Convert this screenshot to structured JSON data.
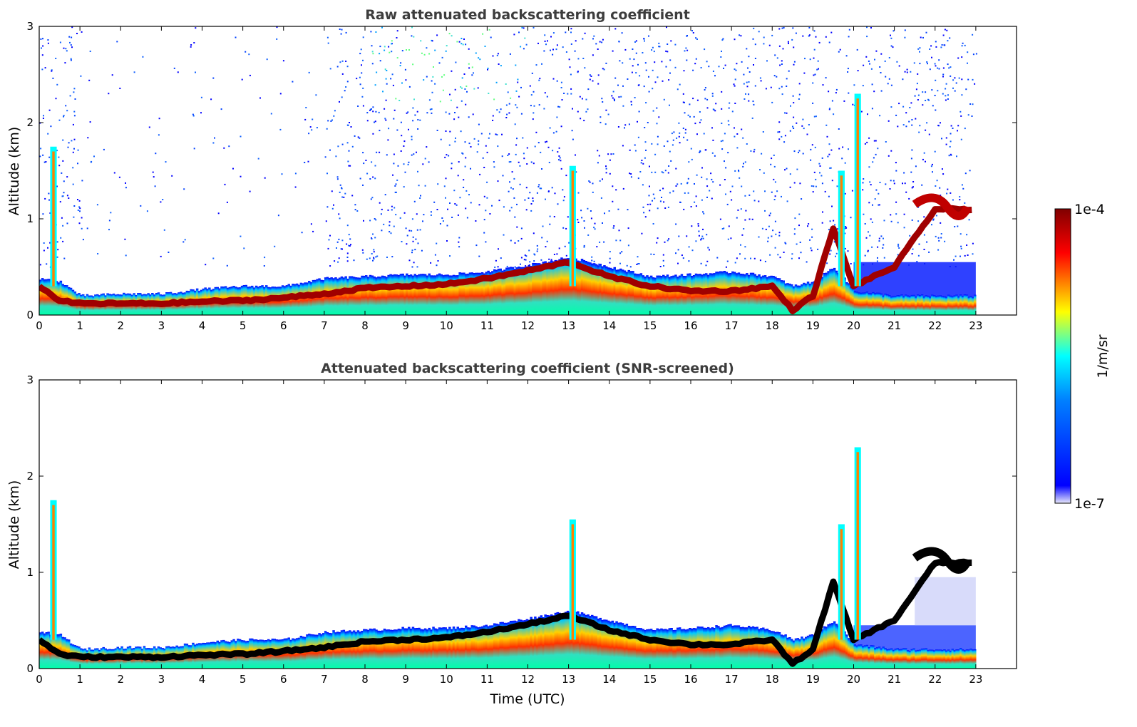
{
  "chart_data": [
    {
      "type": "heatmap",
      "title": "Raw attenuated backscattering coefficient",
      "xlabel": "",
      "ylabel": "Altitude (km)",
      "xlim": [
        0,
        24
      ],
      "ylim": [
        0,
        3
      ],
      "xticks": [
        "0",
        "1",
        "2",
        "3",
        "4",
        "5",
        "6",
        "7",
        "8",
        "9",
        "10",
        "11",
        "12",
        "13",
        "14",
        "15",
        "16",
        "17",
        "18",
        "19",
        "20",
        "21",
        "22",
        "23"
      ],
      "yticks": [
        "0",
        "1",
        "2",
        "3"
      ],
      "grid": false,
      "screened": false
    },
    {
      "type": "heatmap",
      "title": "Attenuated backscattering coefficient (SNR-screened)",
      "xlabel": "Time (UTC)",
      "ylabel": "Altitude (km)",
      "xlim": [
        0,
        24
      ],
      "ylim": [
        0,
        3
      ],
      "xticks": [
        "0",
        "1",
        "2",
        "3",
        "4",
        "5",
        "6",
        "7",
        "8",
        "9",
        "10",
        "11",
        "12",
        "13",
        "14",
        "15",
        "16",
        "17",
        "18",
        "19",
        "20",
        "21",
        "22",
        "23"
      ],
      "yticks": [
        "0",
        "1",
        "2",
        "3"
      ],
      "grid": false,
      "screened": true
    }
  ],
  "colorbar": {
    "label": "1/m/sr",
    "max_label": "1e-4",
    "min_label": "1e-7",
    "colormap": "jet",
    "colors": [
      "#e8e8fa",
      "#0000ff",
      "#00ffff",
      "#ffff00",
      "#ff0000",
      "#800000"
    ]
  },
  "layer_profile": {
    "hours": [
      0,
      0.5,
      1,
      2,
      3,
      4,
      5,
      6,
      7,
      8,
      9,
      10,
      11,
      12,
      13,
      14,
      15,
      16,
      17,
      18,
      18.5,
      19,
      19.5,
      20,
      21,
      22,
      23
    ],
    "boundary_layer_top_km": [
      0.38,
      0.35,
      0.2,
      0.22,
      0.22,
      0.27,
      0.3,
      0.3,
      0.38,
      0.4,
      0.42,
      0.42,
      0.45,
      0.52,
      0.6,
      0.5,
      0.4,
      0.42,
      0.45,
      0.4,
      0.3,
      0.35,
      0.5,
      0.25,
      0.2,
      0.2,
      0.2
    ],
    "aerosol_layer_km": [
      0.3,
      0.15,
      0.12,
      0.12,
      0.12,
      0.14,
      0.15,
      0.18,
      0.22,
      0.28,
      0.3,
      0.32,
      0.38,
      0.46,
      0.55,
      0.4,
      0.3,
      0.25,
      0.25,
      0.3,
      0.05,
      0.2,
      0.9,
      0.3,
      0.5,
      1.1,
      1.1
    ]
  }
}
